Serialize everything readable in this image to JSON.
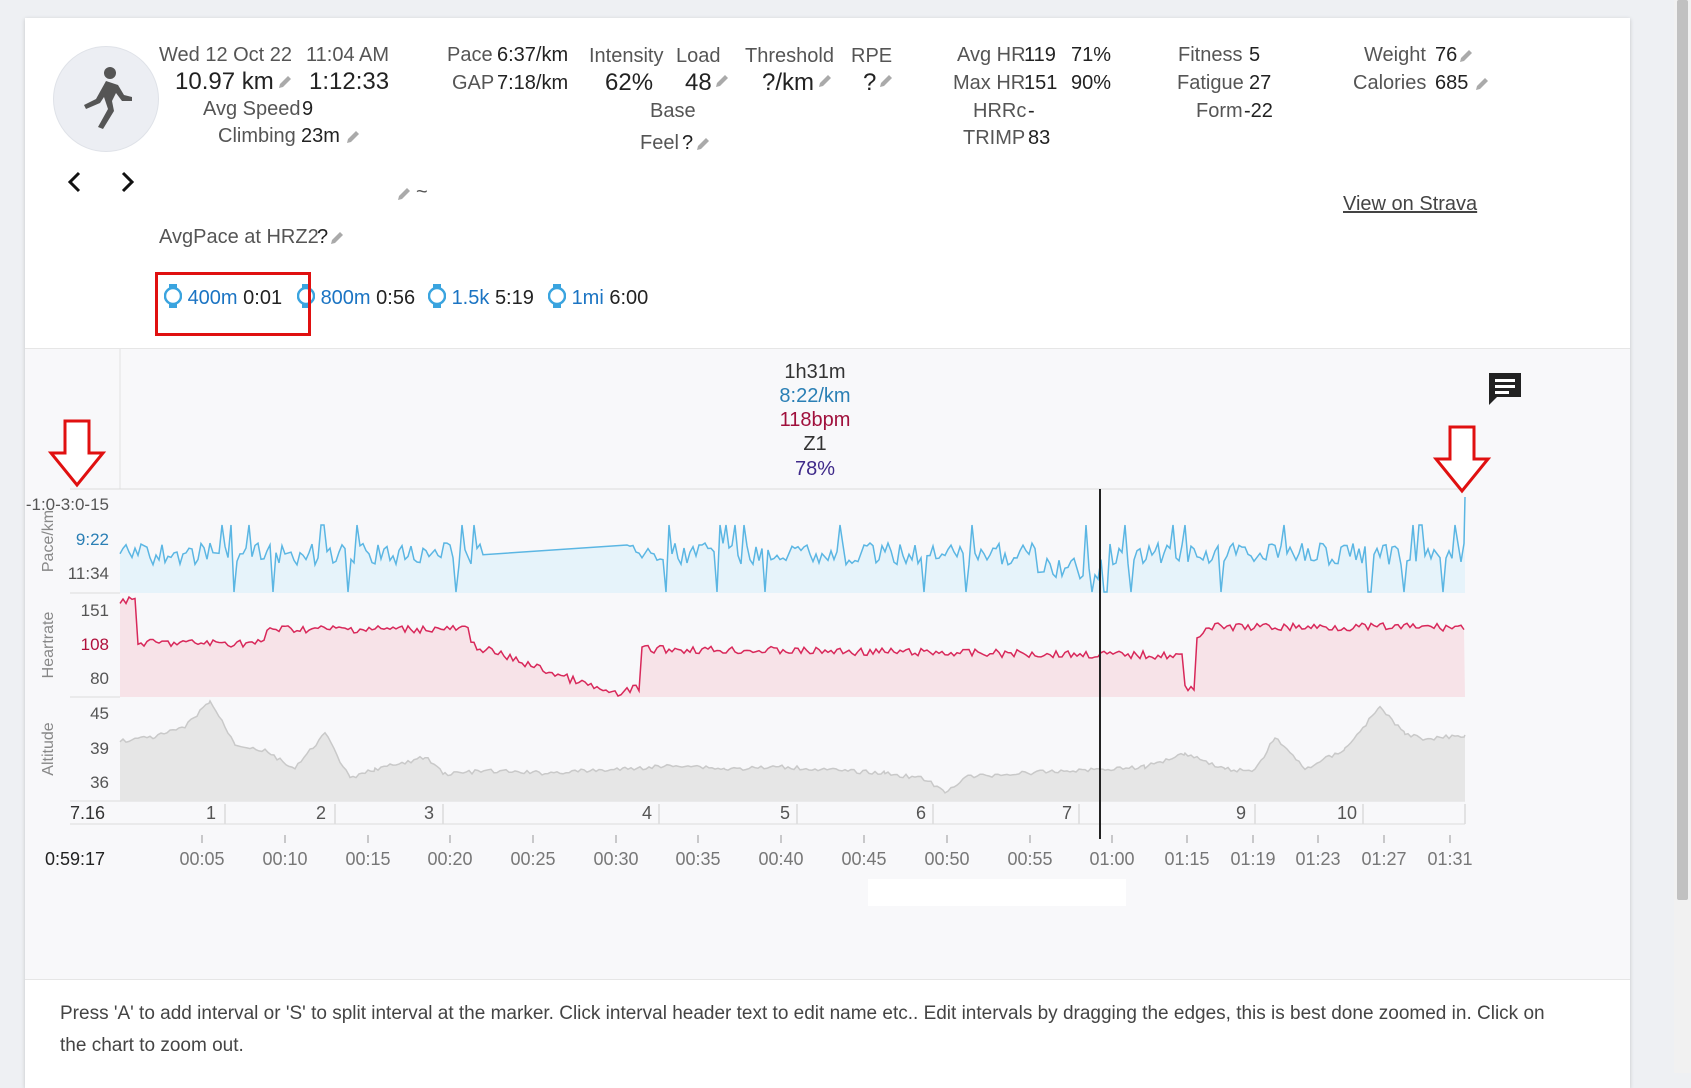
{
  "activity": {
    "date": "Wed 12 Oct 22",
    "time": "11:04 AM",
    "distance": "10.97 km",
    "duration": "1:12:33",
    "avg_speed_label": "Avg Speed",
    "avg_speed": "9",
    "climbing_label": "Climbing",
    "climbing": "23m",
    "pace_label": "Pace",
    "pace": "6:37/km",
    "gap_label": "GAP",
    "gap": "7:18/km",
    "intensity_label": "Intensity",
    "intensity": "62%",
    "load_label": "Load",
    "load": "48",
    "base_label": "Base",
    "threshold_label": "Threshold",
    "threshold": "?/km",
    "rpe_label": "RPE",
    "rpe": "?",
    "feel_label": "Feel",
    "feel": "?",
    "avg_hr_label": "Avg HR",
    "avg_hr": "119",
    "avg_hr_pct": "71%",
    "max_hr_label": "Max HR",
    "max_hr": "151",
    "max_hr_pct": "90%",
    "hrrc_label": "HRRc",
    "hrrc": "-",
    "trimp_label": "TRIMP",
    "trimp": "83",
    "fitness_label": "Fitness",
    "fitness": "5",
    "fatigue_label": "Fatigue",
    "fatigue": "27",
    "form_label": "Form",
    "form": "-22",
    "weight_label": "Weight",
    "weight": "76",
    "calories_label": "Calories",
    "calories": "685",
    "tilde": "~",
    "view_strava": "View on Strava",
    "avgpace_hrz2_label": "AvgPace at HRZ2",
    "avgpace_hrz2": "?"
  },
  "best_efforts": [
    {
      "distance": "400m",
      "time": "0:01"
    },
    {
      "distance": "800m",
      "time": "0:56"
    },
    {
      "distance": "1.5k",
      "time": "5:19"
    },
    {
      "distance": "1mi",
      "time": "6:00"
    }
  ],
  "selection": {
    "duration": "1h31m",
    "pace": "8:22/km",
    "hr": "118bpm",
    "zone": "Z1",
    "pct": "78%"
  },
  "cursor_time": "0:59:17",
  "footer_text": "Press 'A' to add interval or 'S' to split interval at the marker. Click interval header text to edit name etc.. Edit intervals by dragging the edges, this is best done zoomed in. Click on the chart to zoom out.",
  "colors": {
    "pace": "#5bb6e3",
    "heartrate": "#d8285a",
    "altitude": "#bdbdbd",
    "accent": "#1b74c3",
    "annotation": "#e01010"
  },
  "icons": {
    "avatar": "running-person-icon",
    "prev": "chevron-left-icon",
    "next": "chevron-right-icon",
    "comment": "comment-icon",
    "edit": "pencil-icon",
    "watch": "stopwatch-icon"
  },
  "chart_data": [
    {
      "type": "line",
      "name": "Pace",
      "ylabel": "Pace/km",
      "y_ticks": [
        "-1:0-3:0-15",
        "9:22",
        "11:34"
      ]
    },
    {
      "type": "line",
      "name": "Heartrate",
      "ylabel": "Heartrate",
      "y_ticks": [
        "151",
        "108",
        "80"
      ]
    },
    {
      "type": "area",
      "name": "Altitude",
      "ylabel": "Altitude",
      "y_ticks": [
        "45",
        "39",
        "36"
      ]
    }
  ],
  "laps": {
    "first_label": "7.16",
    "numbers": [
      "1",
      "2",
      "3",
      "4",
      "5",
      "6",
      "7",
      "9",
      "10"
    ]
  },
  "x_ticks": [
    "00:05",
    "00:10",
    "00:15",
    "00:20",
    "00:25",
    "00:30",
    "00:35",
    "00:40",
    "00:45",
    "00:50",
    "00:55",
    "01:00",
    "01:15",
    "01:19",
    "01:23",
    "01:27",
    "01:31"
  ]
}
